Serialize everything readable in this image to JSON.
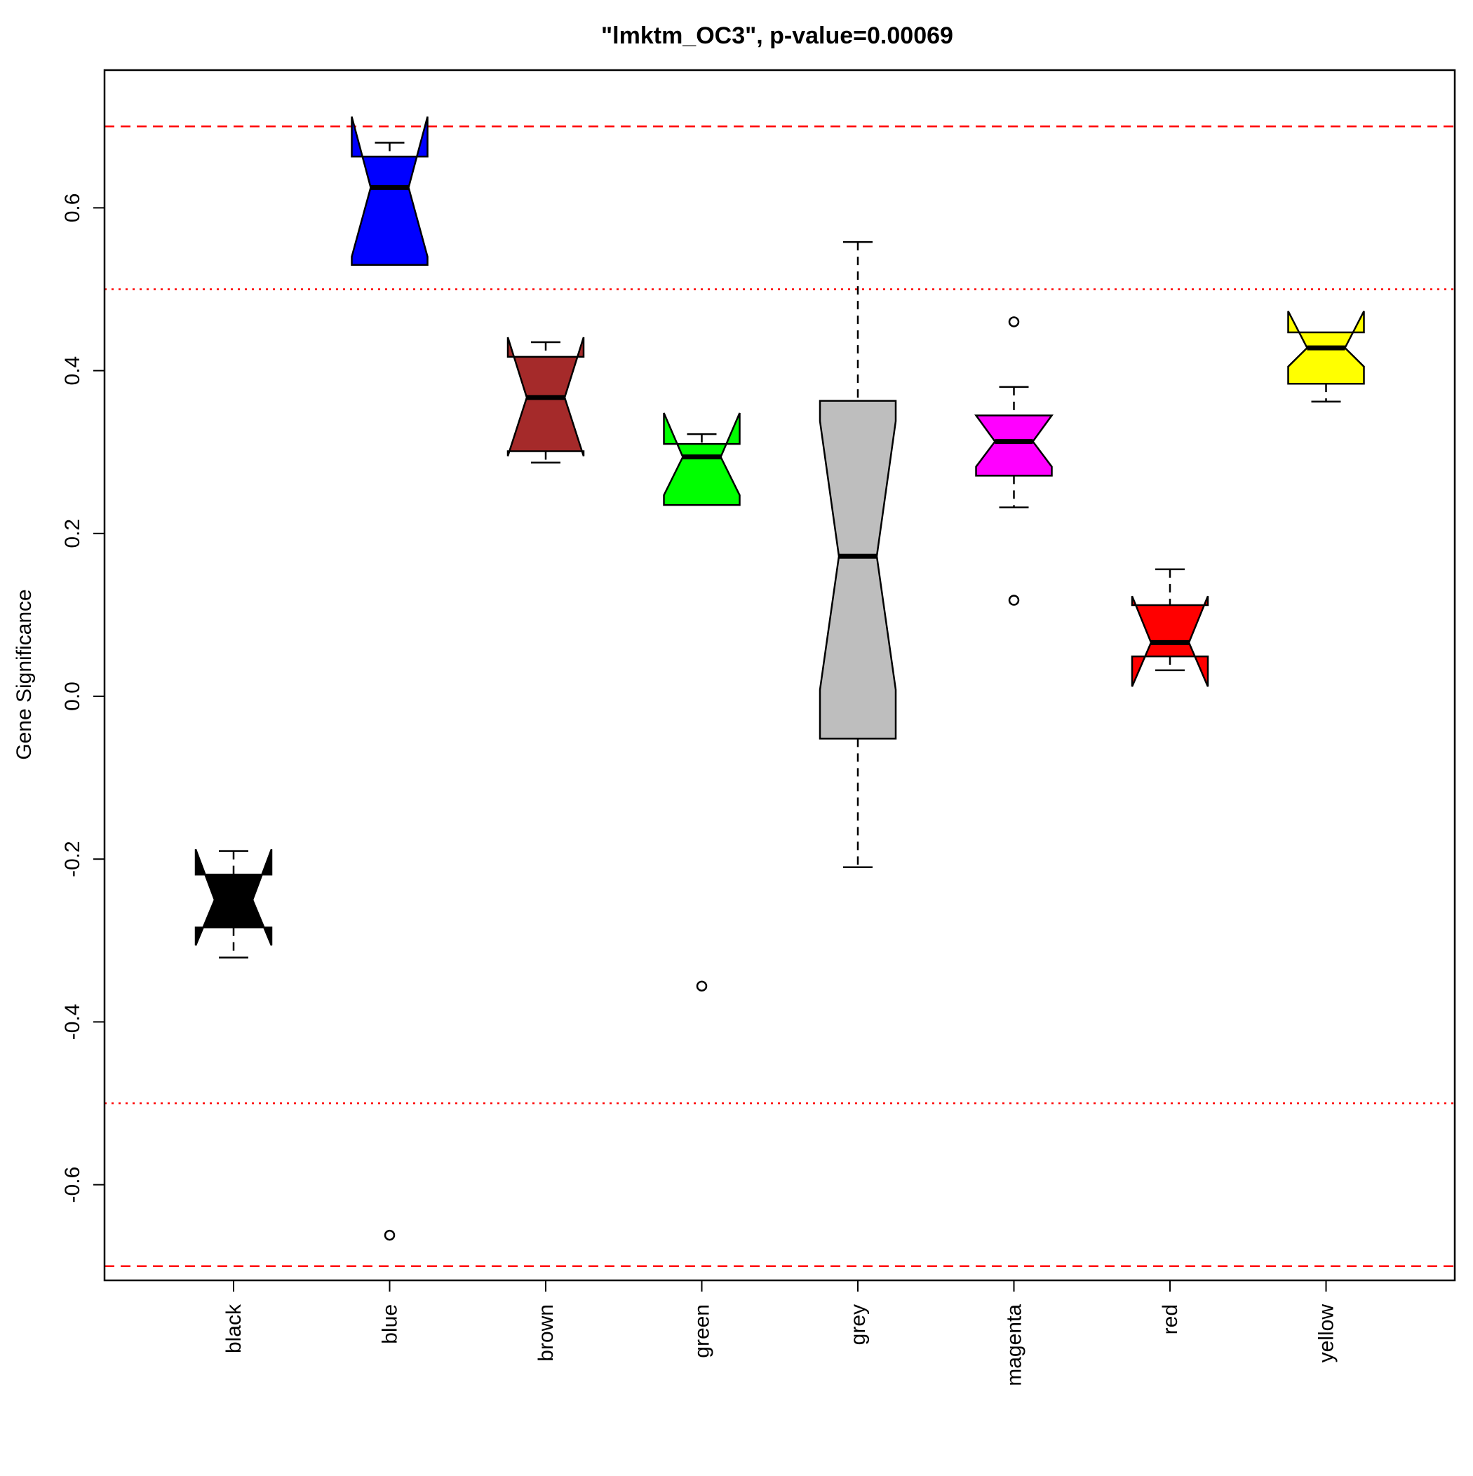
{
  "chart_data": {
    "type": "boxplot",
    "title": "\"lmktm_OC3\", p-value=0.00069",
    "xlabel": "",
    "ylabel": "Gene Significance",
    "ylim": [
      -0.72,
      0.77
    ],
    "yticks": [
      -0.6,
      -0.4,
      -0.2,
      0.0,
      0.2,
      0.4,
      0.6
    ],
    "ytick_labels": [
      "-0.6",
      "-0.4",
      "-0.2",
      "0.0",
      "0.2",
      "0.4",
      "0.6"
    ],
    "notched": true,
    "reference_lines": [
      {
        "y": 0.7,
        "style": "dashed",
        "color": "#ff0000"
      },
      {
        "y": 0.5,
        "style": "dotted",
        "color": "#ff0000"
      },
      {
        "y": -0.5,
        "style": "dotted",
        "color": "#ff0000"
      },
      {
        "y": -0.7,
        "style": "dashed",
        "color": "#ff0000"
      }
    ],
    "categories": [
      "black",
      "blue",
      "brown",
      "green",
      "grey",
      "magenta",
      "red",
      "yellow"
    ],
    "boxes": [
      {
        "name": "black",
        "color": "#000000",
        "whisker_low": -0.321,
        "q1": -0.284,
        "median": -0.25,
        "q3": -0.219,
        "whisker_high": -0.19,
        "notch_low": -0.306,
        "notch_high": -0.188,
        "outliers": []
      },
      {
        "name": "blue",
        "color": "#0000ff",
        "whisker_low": 0.53,
        "q1": 0.53,
        "median": 0.625,
        "q3": 0.663,
        "whisker_high": 0.68,
        "notch_low": 0.54,
        "notch_high": 0.712,
        "outliers": [
          -0.662
        ]
      },
      {
        "name": "brown",
        "color": "#a52a2a",
        "whisker_low": 0.287,
        "q1": 0.301,
        "median": 0.367,
        "q3": 0.417,
        "whisker_high": 0.435,
        "notch_low": 0.295,
        "notch_high": 0.441,
        "outliers": []
      },
      {
        "name": "green",
        "color": "#00ff00",
        "whisker_low": 0.235,
        "q1": 0.235,
        "median": 0.294,
        "q3": 0.31,
        "whisker_high": 0.322,
        "notch_low": 0.247,
        "notch_high": 0.348,
        "outliers": [
          -0.356
        ]
      },
      {
        "name": "grey",
        "color": "#bebebe",
        "whisker_low": -0.21,
        "q1": -0.052,
        "median": 0.172,
        "q3": 0.363,
        "whisker_high": 0.558,
        "notch_low": 0.008,
        "notch_high": 0.338,
        "outliers": []
      },
      {
        "name": "magenta",
        "color": "#ff00ff",
        "whisker_low": 0.232,
        "q1": 0.271,
        "median": 0.313,
        "q3": 0.345,
        "whisker_high": 0.38,
        "notch_low": 0.282,
        "notch_high": 0.345,
        "outliers": [
          0.46,
          0.118
        ]
      },
      {
        "name": "red",
        "color": "#ff0000",
        "whisker_low": 0.032,
        "q1": 0.049,
        "median": 0.066,
        "q3": 0.112,
        "whisker_high": 0.156,
        "notch_low": 0.012,
        "notch_high": 0.123,
        "outliers": []
      },
      {
        "name": "yellow",
        "color": "#ffff00",
        "whisker_low": 0.362,
        "q1": 0.384,
        "median": 0.428,
        "q3": 0.447,
        "whisker_high": 0.447,
        "notch_low": 0.405,
        "notch_high": 0.473,
        "outliers": []
      }
    ],
    "grid": false,
    "legend": "none"
  }
}
